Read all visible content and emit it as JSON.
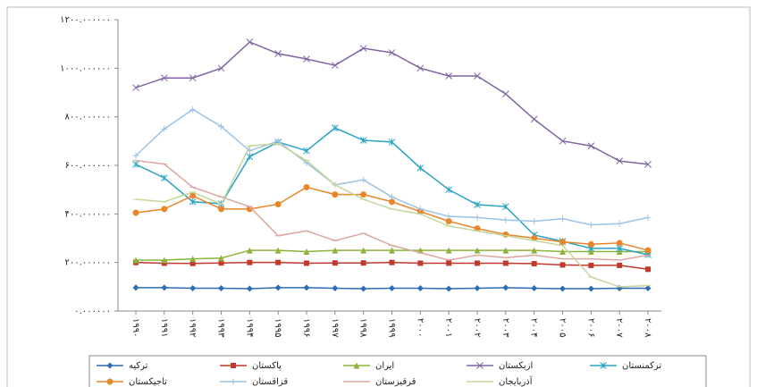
{
  "chart_data": {
    "type": "line",
    "categories": [
      "۱۹۹۰",
      "۱۹۹۱",
      "۱۹۹۲",
      "۱۹۹۳",
      "۱۹۹۴",
      "۱۹۹۵",
      "۱۹۹۶",
      "۱۹۹۷",
      "۱۹۹۸",
      "۱۹۹۹",
      "۲۰۰۰",
      "۲۰۰۱",
      "۲۰۰۲",
      "۲۰۰۳",
      "۲۰۰۴",
      "۲۰۰۵",
      "۲۰۰۶",
      "۲۰۰۷",
      "۲۰۰۸"
    ],
    "ylim": [
      0,
      1200
    ],
    "yticks": [
      {
        "value": 0,
        "label": "۰.۰۰۰۰۰۰"
      },
      {
        "value": 200,
        "label": "۲۰۰.۰۰۰۰۰۰"
      },
      {
        "value": 400,
        "label": "۴۰۰.۰۰۰۰۰۰"
      },
      {
        "value": 600,
        "label": "۶۰۰.۰۰۰۰۰۰"
      },
      {
        "value": 800,
        "label": "۸۰۰.۰۰۰۰۰۰"
      },
      {
        "value": 1000,
        "label": "۱۰۰۰.۰۰۰۰۰۰"
      },
      {
        "value": 1200,
        "label": "۱۲۰۰.۰۰۰۰۰۰"
      }
    ],
    "series": [
      {
        "name": "ترکیه",
        "color": "#2e6db4",
        "marker": "diamond",
        "values": [
          96,
          96,
          94,
          94,
          92,
          96,
          96,
          94,
          92,
          94,
          94,
          92,
          94,
          96,
          94,
          92,
          92,
          94,
          94
        ]
      },
      {
        "name": "پاکستان",
        "color": "#c0392b",
        "marker": "square",
        "values": [
          200,
          197,
          196,
          198,
          200,
          200,
          197,
          198,
          198,
          200,
          197,
          197,
          197,
          197,
          195,
          190,
          188,
          188,
          172
        ]
      },
      {
        "name": "ایران",
        "color": "#8db33a",
        "marker": "triangle",
        "values": [
          210,
          210,
          215,
          218,
          250,
          250,
          245,
          250,
          250,
          250,
          250,
          250,
          250,
          250,
          250,
          245,
          245,
          245,
          245
        ]
      },
      {
        "name": "ازبکستان",
        "color": "#8064a2",
        "marker": "x",
        "values": [
          920,
          960,
          960,
          1000,
          1108,
          1060,
          1038,
          1012,
          1082,
          1064,
          1000,
          968,
          968,
          894,
          790,
          700,
          680,
          618,
          604
        ]
      },
      {
        "name": "ترکمنستان",
        "color": "#2aa3c4",
        "marker": "star",
        "values": [
          604,
          548,
          450,
          442,
          636,
          696,
          660,
          754,
          703,
          696,
          589,
          500,
          438,
          430,
          313,
          287,
          258,
          258,
          232
        ]
      },
      {
        "name": "تاجیکستان",
        "color": "#e8862a",
        "marker": "circle",
        "values": [
          405,
          420,
          475,
          420,
          420,
          440,
          510,
          480,
          480,
          450,
          410,
          370,
          340,
          315,
          300,
          285,
          275,
          280,
          250
        ]
      },
      {
        "name": "قزاقستان",
        "color": "#9cc3e6",
        "marker": "plus",
        "values": [
          640,
          750,
          830,
          760,
          660,
          700,
          610,
          520,
          540,
          470,
          420,
          390,
          385,
          375,
          370,
          380,
          355,
          360,
          385
        ]
      },
      {
        "name": "قرقیزستان",
        "color": "#dba6a0",
        "marker": "dash",
        "values": [
          620,
          605,
          510,
          470,
          430,
          310,
          330,
          290,
          320,
          270,
          240,
          210,
          230,
          220,
          230,
          215,
          215,
          210,
          230
        ]
      },
      {
        "name": "آذربایجان",
        "color": "#c5d69b",
        "marker": "dash",
        "values": [
          460,
          450,
          490,
          440,
          680,
          690,
          620,
          520,
          460,
          420,
          400,
          350,
          330,
          310,
          290,
          270,
          140,
          100,
          105
        ]
      }
    ]
  }
}
